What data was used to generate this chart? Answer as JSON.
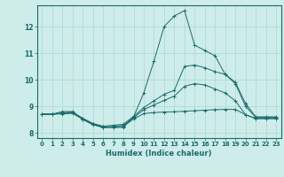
{
  "title": "",
  "xlabel": "Humidex (Indice chaleur)",
  "bg_color": "#ceecea",
  "grid_color": "#a8d8d4",
  "line_color": "#1a6b6b",
  "xlim": [
    -0.5,
    23.5
  ],
  "ylim": [
    7.8,
    12.8
  ],
  "yticks": [
    8,
    9,
    10,
    11,
    12
  ],
  "xticks": [
    0,
    1,
    2,
    3,
    4,
    5,
    6,
    7,
    8,
    9,
    10,
    11,
    12,
    13,
    14,
    15,
    16,
    17,
    18,
    19,
    20,
    21,
    22,
    23
  ],
  "series": {
    "line1_x": [
      0,
      1,
      2,
      3,
      4,
      5,
      6,
      7,
      8,
      9,
      10,
      11,
      12,
      13,
      14,
      15,
      16,
      17,
      18,
      19,
      20,
      21,
      22,
      23
    ],
    "line1_y": [
      8.7,
      8.7,
      8.8,
      8.8,
      8.5,
      8.3,
      8.2,
      8.2,
      8.2,
      8.6,
      9.5,
      10.7,
      12.0,
      12.4,
      12.6,
      11.3,
      11.1,
      10.9,
      10.2,
      9.9,
      9.1,
      8.6,
      8.6,
      8.6
    ],
    "line2_x": [
      0,
      1,
      2,
      3,
      4,
      5,
      6,
      7,
      8,
      9,
      10,
      11,
      12,
      13,
      14,
      15,
      16,
      17,
      18,
      19,
      20,
      21,
      22,
      23
    ],
    "line2_y": [
      8.7,
      8.7,
      8.75,
      8.78,
      8.55,
      8.35,
      8.25,
      8.28,
      8.32,
      8.62,
      8.95,
      9.2,
      9.45,
      9.6,
      10.5,
      10.55,
      10.45,
      10.3,
      10.2,
      9.85,
      9.0,
      8.58,
      8.58,
      8.58
    ],
    "line3_x": [
      0,
      1,
      2,
      3,
      4,
      5,
      6,
      7,
      8,
      9,
      10,
      11,
      12,
      13,
      14,
      15,
      16,
      17,
      18,
      19,
      20,
      21,
      22,
      23
    ],
    "line3_y": [
      8.7,
      8.7,
      8.73,
      8.76,
      8.52,
      8.33,
      8.22,
      8.24,
      8.28,
      8.57,
      8.87,
      9.05,
      9.22,
      9.38,
      9.75,
      9.85,
      9.8,
      9.65,
      9.5,
      9.2,
      8.68,
      8.54,
      8.54,
      8.54
    ],
    "line4_x": [
      0,
      1,
      2,
      3,
      4,
      5,
      6,
      7,
      8,
      9,
      10,
      11,
      12,
      13,
      14,
      15,
      16,
      17,
      18,
      19,
      20,
      21,
      22,
      23
    ],
    "line4_y": [
      8.7,
      8.7,
      8.71,
      8.73,
      8.51,
      8.32,
      8.2,
      8.21,
      8.24,
      8.52,
      8.72,
      8.76,
      8.78,
      8.79,
      8.81,
      8.83,
      8.85,
      8.87,
      8.88,
      8.88,
      8.68,
      8.53,
      8.53,
      8.53
    ]
  }
}
